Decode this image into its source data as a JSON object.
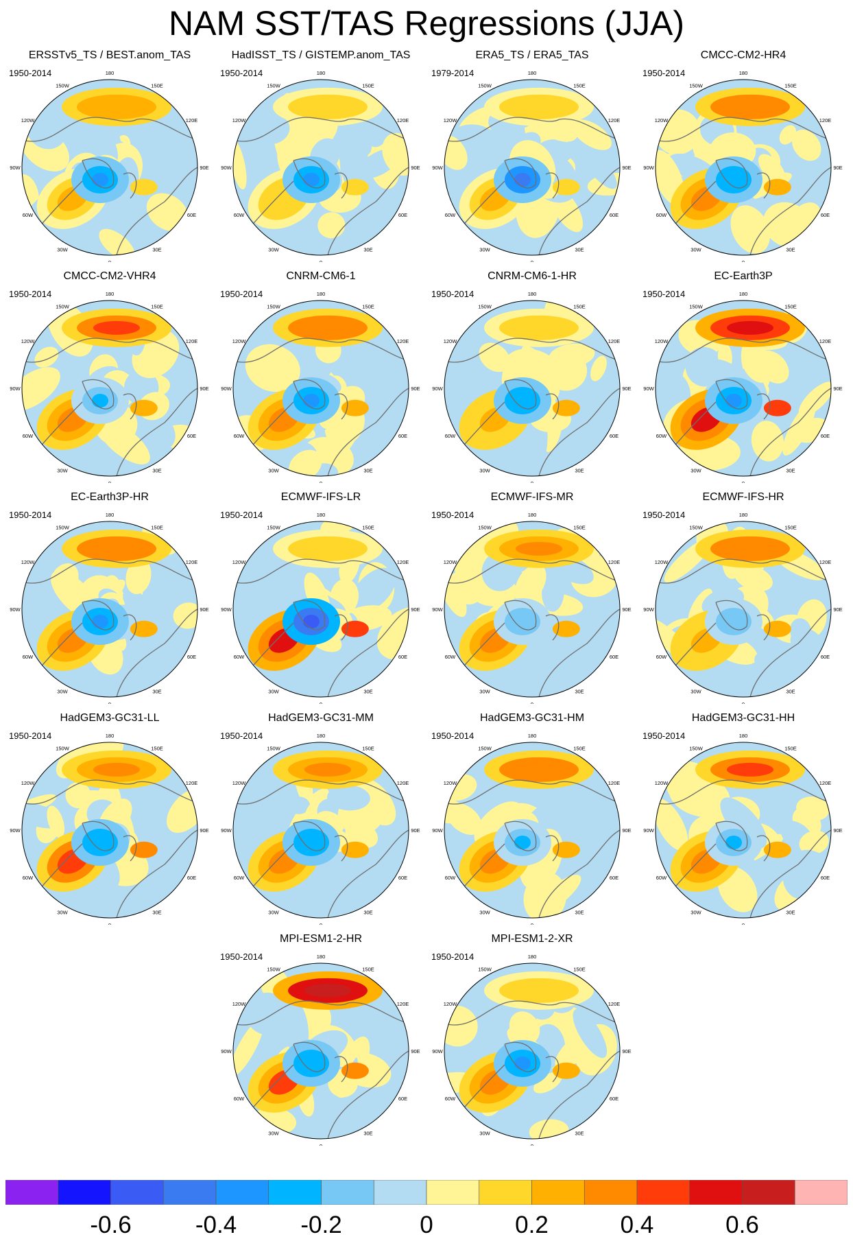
{
  "title": "NAM SST/TAS Regressions (JJA)",
  "lon_labels": [
    "180",
    "150E",
    "120E",
    "90E",
    "60E",
    "30E",
    "0",
    "30W",
    "60W",
    "90W",
    "120W",
    "150W"
  ],
  "panels": [
    {
      "title": "ERSSTv5_TS / BEST.anom_TAS",
      "period": "1950-2014",
      "seed": 1,
      "warm_lobe": 0.22,
      "cool_center": -0.35,
      "high_lat": 0.2
    },
    {
      "title": "HadISST_TS / GISTEMP.anom_TAS",
      "period": "1950-2014",
      "seed": 2,
      "warm_lobe": 0.18,
      "cool_center": -0.4,
      "high_lat": 0.1
    },
    {
      "title": "ERA5_TS / ERA5_TAS",
      "period": "1979-2014",
      "seed": 3,
      "warm_lobe": 0.2,
      "cool_center": -0.45,
      "high_lat": 0.15
    },
    {
      "title": "CMCC-CM2-HR4",
      "period": "1950-2014",
      "seed": 4,
      "warm_lobe": 0.3,
      "cool_center": -0.3,
      "high_lat": 0.3
    },
    {
      "title": "CMCC-CM2-VHR4",
      "period": "1950-2014",
      "seed": 5,
      "warm_lobe": 0.35,
      "cool_center": -0.25,
      "high_lat": 0.35
    },
    {
      "title": "CNRM-CM6-1",
      "period": "1950-2014",
      "seed": 6,
      "warm_lobe": 0.32,
      "cool_center": -0.35,
      "high_lat": 0.3
    },
    {
      "title": "CNRM-CM6-1-HR",
      "period": "1950-2014",
      "seed": 7,
      "warm_lobe": 0.25,
      "cool_center": -0.3,
      "high_lat": 0.1
    },
    {
      "title": "EC-Earth3P",
      "period": "1950-2014",
      "seed": 8,
      "warm_lobe": 0.5,
      "cool_center": -0.4,
      "high_lat": 0.45
    },
    {
      "title": "EC-Earth3P-HR",
      "period": "1950-2014",
      "seed": 9,
      "warm_lobe": 0.3,
      "cool_center": -0.35,
      "high_lat": 0.3
    },
    {
      "title": "ECMWF-IFS-LR",
      "period": "1950-2014",
      "seed": 10,
      "warm_lobe": 0.55,
      "cool_center": -0.6,
      "high_lat": 0.1
    },
    {
      "title": "ECMWF-IFS-MR",
      "period": "1950-2014",
      "seed": 11,
      "warm_lobe": 0.3,
      "cool_center": -0.2,
      "high_lat": 0.25
    },
    {
      "title": "ECMWF-IFS-HR",
      "period": "1950-2014",
      "seed": 12,
      "warm_lobe": 0.25,
      "cool_center": -0.2,
      "high_lat": 0.3
    },
    {
      "title": "HadGEM3-GC31-LL",
      "period": "1950-2014",
      "seed": 13,
      "warm_lobe": 0.45,
      "cool_center": -0.3,
      "high_lat": 0.25
    },
    {
      "title": "HadGEM3-GC31-MM",
      "period": "1950-2014",
      "seed": 14,
      "warm_lobe": 0.3,
      "cool_center": -0.3,
      "high_lat": 0.25
    },
    {
      "title": "HadGEM3-GC31-HM",
      "period": "1950-2014",
      "seed": 15,
      "warm_lobe": 0.32,
      "cool_center": -0.25,
      "high_lat": 0.3
    },
    {
      "title": "HadGEM3-GC31-HH",
      "period": "1950-2014",
      "seed": 16,
      "warm_lobe": 0.35,
      "cool_center": -0.25,
      "high_lat": 0.35
    },
    {
      "title": "MPI-ESM1-2-HR",
      "period": "1950-2014",
      "seed": 17,
      "warm_lobe": 0.4,
      "cool_center": -0.3,
      "high_lat": 0.5
    },
    {
      "title": "MPI-ESM1-2-XR",
      "period": "1950-2014",
      "seed": 18,
      "warm_lobe": 0.3,
      "cool_center": -0.4,
      "high_lat": 0.1
    }
  ],
  "colorbar": {
    "colors": [
      "#8b22f0",
      "#1414ff",
      "#3a5cf5",
      "#3b7bf1",
      "#1e96ff",
      "#00b4ff",
      "#78c8f5",
      "#b3dcf2",
      "#fff596",
      "#ffd62a",
      "#ffb000",
      "#ff8a00",
      "#ff3c0a",
      "#e01010",
      "#c81e1e",
      "#ffb4b4"
    ],
    "labels": [
      "-0.6",
      "-0.4",
      "-0.2",
      "0",
      "0.2",
      "0.4",
      "0.6"
    ],
    "levels": [
      -0.7,
      -0.6,
      -0.5,
      -0.4,
      -0.3,
      -0.2,
      -0.1,
      0,
      0.1,
      0.2,
      0.3,
      0.4,
      0.5,
      0.6,
      0.7
    ]
  }
}
